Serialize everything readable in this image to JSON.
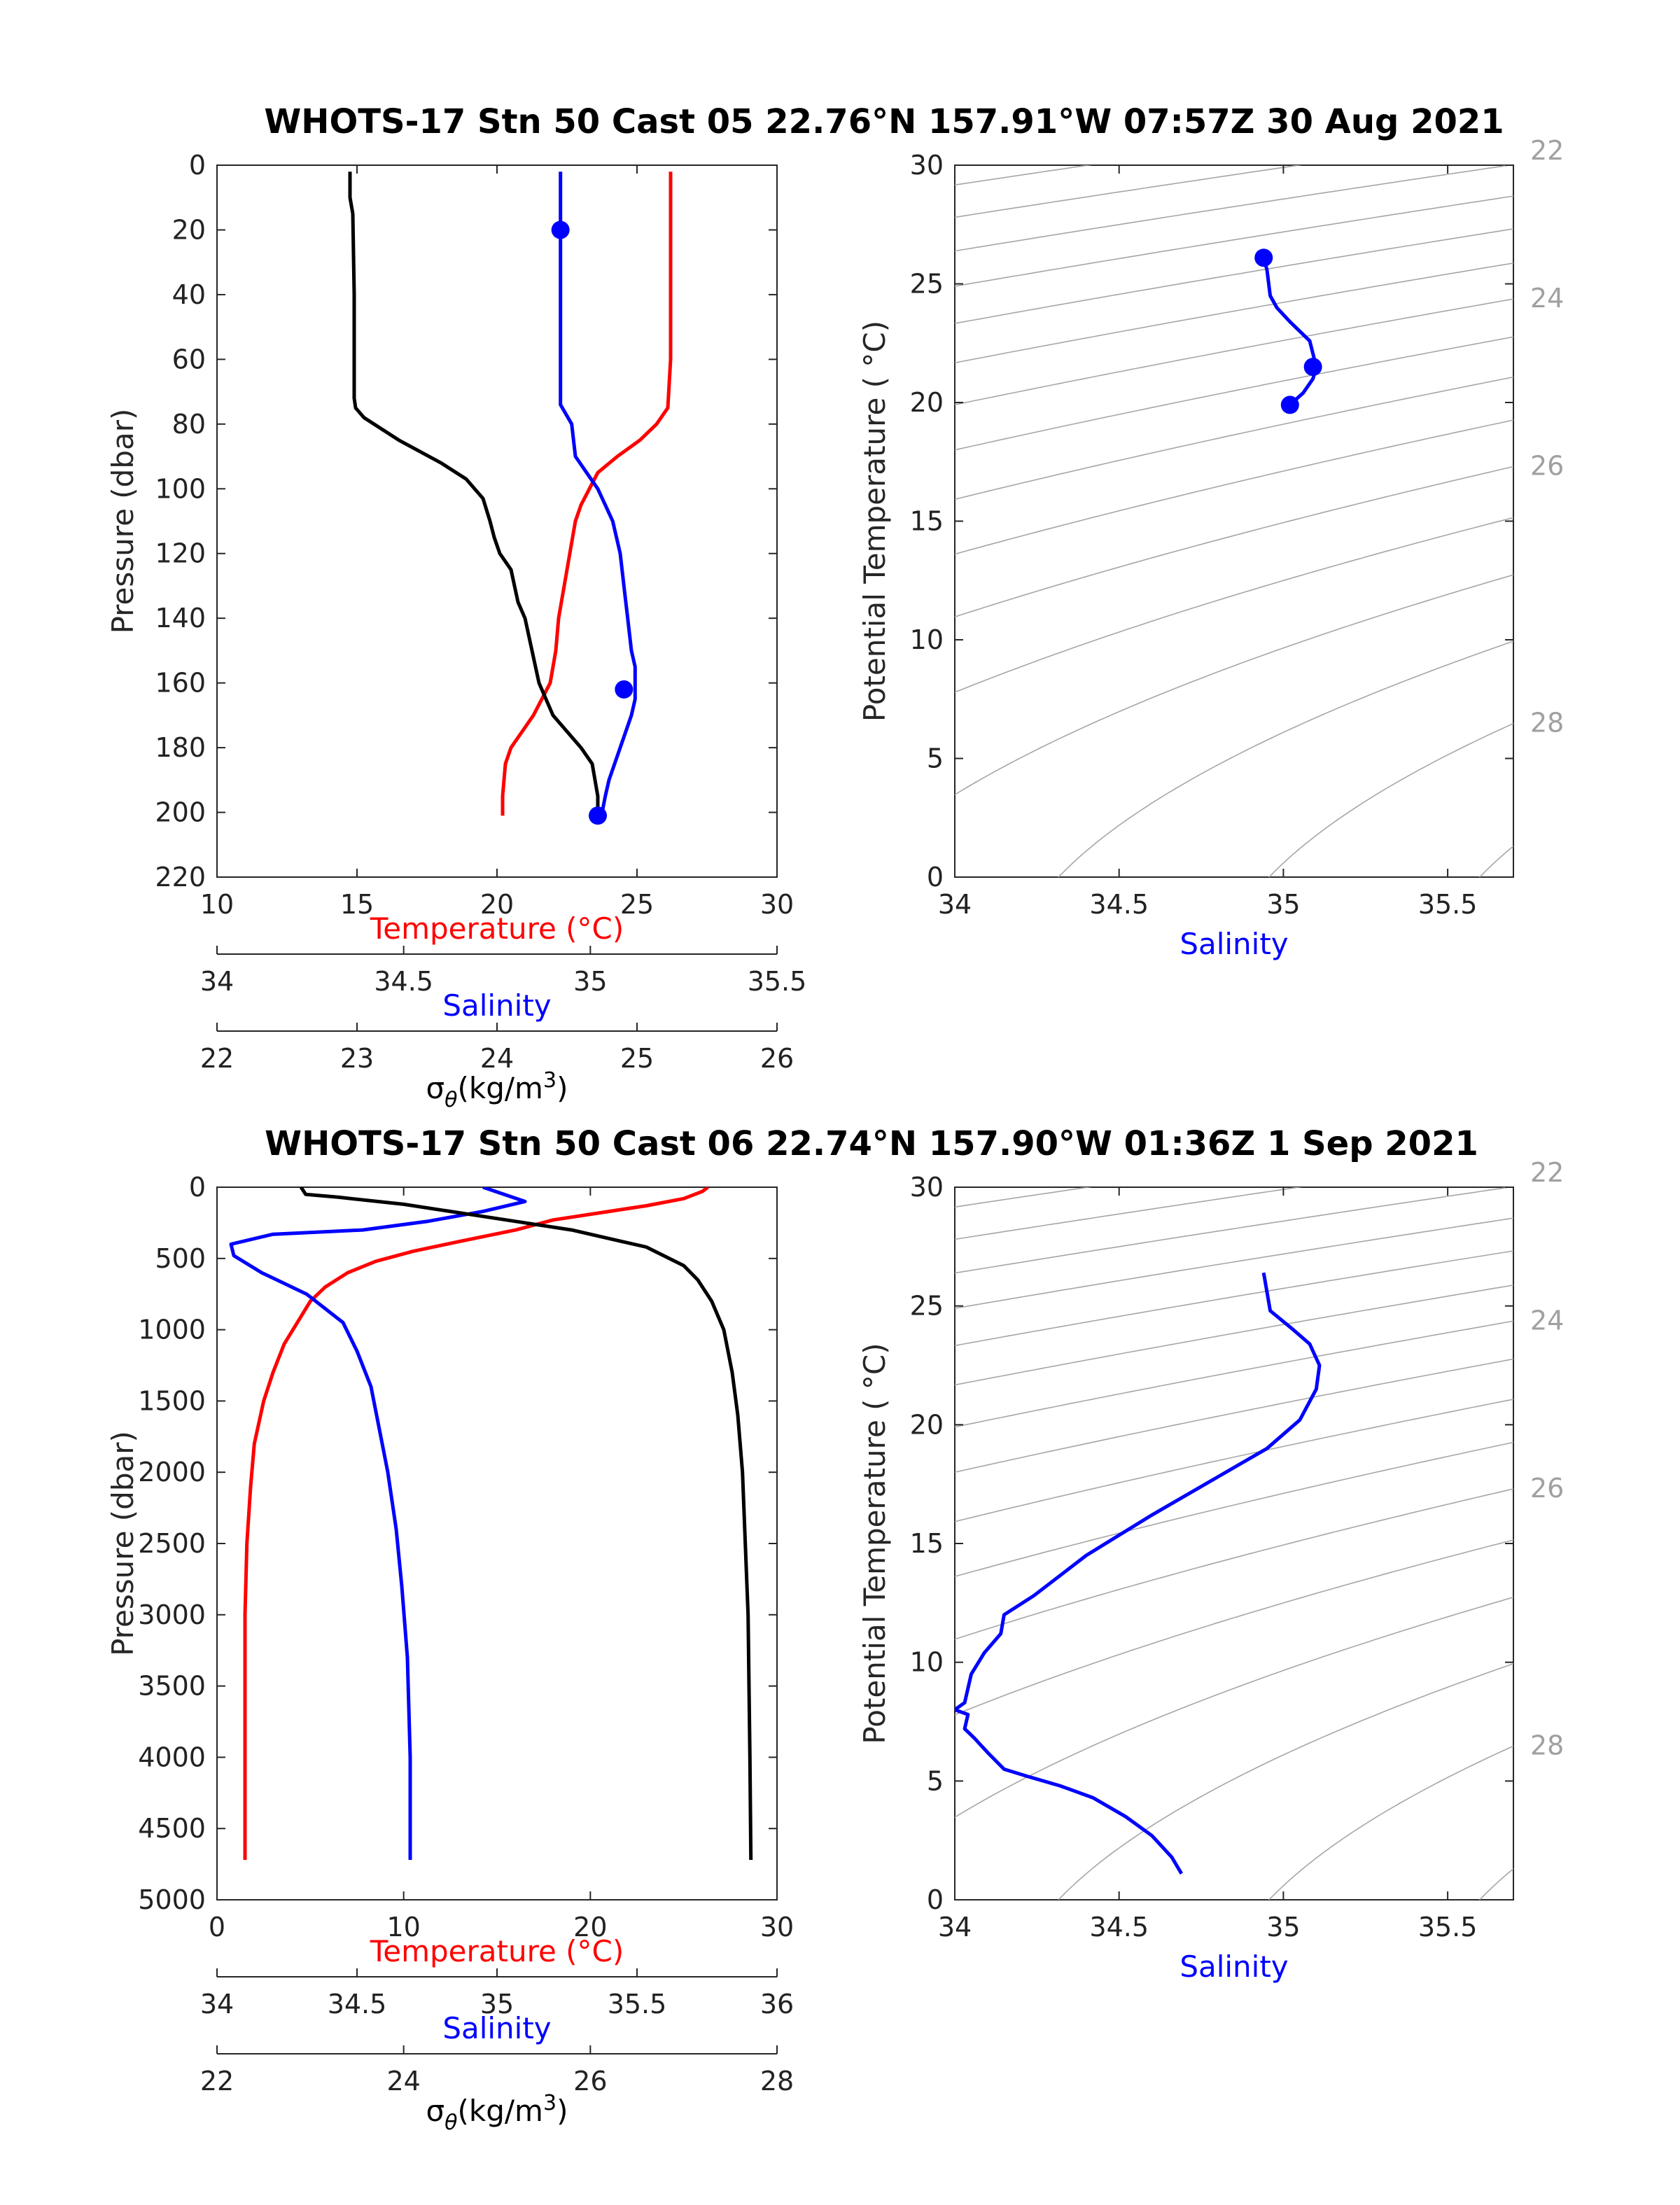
{
  "panels": [
    {
      "title": "WHOTS-17 Stn 50 Cast 05   22.76°N 157.91°W   07:57Z 30 Aug 2021",
      "profile": {
        "type": "line",
        "ylabel": "Pressure (dbar)",
        "ylim": [
          0,
          220
        ],
        "yticks": [
          0,
          20,
          40,
          60,
          80,
          100,
          120,
          140,
          160,
          180,
          200,
          220
        ],
        "axes": [
          {
            "key": "temp",
            "label": "Temperature (°C)",
            "label_color": "#ff0000",
            "range": [
              10,
              30
            ],
            "ticks": [
              10,
              15,
              20,
              25,
              30
            ]
          },
          {
            "key": "sal",
            "label": "Salinity",
            "label_color": "#0000ff",
            "range": [
              34,
              35.5
            ],
            "ticks": [
              34,
              34.5,
              35,
              35.5
            ]
          },
          {
            "key": "sig",
            "label": "σθ(kg/m3)",
            "label_color": "#000000",
            "range": [
              22,
              26
            ],
            "ticks": [
              22,
              23,
              24,
              25,
              26
            ]
          }
        ],
        "series": [
          {
            "key": "temp",
            "color": "#ff0000",
            "x": [
              26.2,
              26.2,
              26.2,
              26.2,
              26.2,
              26.1,
              25.7,
              25.1,
              24.3,
              23.6,
              23.3,
              23.0,
              22.8,
              22.6,
              22.4,
              22.2,
              22.1,
              21.9,
              21.6,
              21.3,
              20.9,
              20.5,
              20.3,
              20.2,
              20.2
            ],
            "y": [
              2,
              10,
              20,
              40,
              60,
              75,
              80,
              85,
              90,
              95,
              100,
              105,
              110,
              120,
              130,
              140,
              150,
              160,
              165,
              170,
              175,
              180,
              185,
              195,
              201
            ]
          },
          {
            "key": "sal",
            "color": "#0000ff",
            "x": [
              34.92,
              34.92,
              34.92,
              34.92,
              34.92,
              34.92,
              34.95,
              34.96,
              34.99,
              35.02,
              35.04,
              35.06,
              35.08,
              35.09,
              35.1,
              35.11,
              35.12,
              35.12,
              35.12,
              35.11,
              35.08,
              35.05,
              35.04,
              35.03
            ],
            "y": [
              2,
              10,
              20,
              40,
              60,
              74,
              80,
              90,
              95,
              100,
              105,
              110,
              120,
              130,
              140,
              150,
              155,
              160,
              165,
              170,
              180,
              190,
              195,
              201
            ]
          },
          {
            "key": "sig",
            "color": "#000000",
            "x": [
              22.95,
              22.95,
              22.97,
              22.98,
              22.98,
              22.98,
              22.99,
              23.05,
              23.3,
              23.6,
              23.78,
              23.9,
              23.95,
              23.98,
              24.02,
              24.1,
              24.15,
              24.2,
              24.25,
              24.3,
              24.4,
              24.5,
              24.6,
              24.68,
              24.72,
              24.72
            ],
            "y": [
              2,
              10,
              15,
              40,
              60,
              72,
              75,
              78,
              85,
              92,
              97,
              103,
              110,
              115,
              120,
              125,
              135,
              140,
              150,
              160,
              170,
              175,
              180,
              185,
              195,
              201
            ]
          }
        ],
        "markers": [
          {
            "key": "sal",
            "x": 34.92,
            "y": 20
          },
          {
            "key": "sal",
            "x": 35.09,
            "y": 162
          },
          {
            "key": "sal",
            "x": 35.02,
            "y": 201
          }
        ]
      },
      "ts": {
        "type": "line",
        "xlabel": "Salinity",
        "ylabel": "Potential Temperature ( °C)",
        "xlim": [
          34,
          35.7
        ],
        "ylim": [
          0,
          30
        ],
        "xticks": [
          34,
          34.5,
          35,
          35.5
        ],
        "yticks": [
          0,
          5,
          10,
          15,
          20,
          25,
          30
        ],
        "density_labels": [
          "22",
          "24",
          "26",
          "28"
        ],
        "line_color": "#0000ff",
        "x": [
          34.94,
          34.95,
          34.96,
          34.98,
          35.02,
          35.05,
          35.08,
          35.1,
          35.09,
          35.06,
          35.02
        ],
        "y": [
          26.1,
          25.6,
          24.5,
          24.0,
          23.4,
          23.0,
          22.6,
          21.5,
          21.0,
          20.4,
          19.9
        ],
        "markers": [
          {
            "x": 34.94,
            "y": 26.1
          },
          {
            "x": 35.09,
            "y": 21.5
          },
          {
            "x": 35.02,
            "y": 19.9
          }
        ]
      }
    },
    {
      "title": "WHOTS-17 Stn 50 Cast 06   22.74°N 157.90°W   01:36Z 1 Sep 2021",
      "profile": {
        "type": "line",
        "ylabel": "Pressure (dbar)",
        "ylim": [
          0,
          5000
        ],
        "yticks": [
          0,
          500,
          1000,
          1500,
          2000,
          2500,
          3000,
          3500,
          4000,
          4500,
          5000
        ],
        "axes": [
          {
            "key": "temp",
            "label": "Temperature (°C)",
            "label_color": "#ff0000",
            "range": [
              0,
              30
            ],
            "ticks": [
              0,
              10,
              20,
              30
            ]
          },
          {
            "key": "sal",
            "label": "Salinity",
            "label_color": "#0000ff",
            "range": [
              34,
              36
            ],
            "ticks": [
              34,
              34.5,
              35,
              35.5,
              36
            ]
          },
          {
            "key": "sig",
            "label": "σθ(kg/m3)",
            "label_color": "#000000",
            "range": [
              22,
              28
            ],
            "ticks": [
              22,
              24,
              26,
              28
            ]
          }
        ],
        "series": [
          {
            "key": "temp",
            "color": "#ff0000",
            "x": [
              26.3,
              26.0,
              25.0,
              23.0,
              21.0,
              18.0,
              16.0,
              13.0,
              10.5,
              8.5,
              7.0,
              5.8,
              5.0,
              4.3,
              3.6,
              3.0,
              2.5,
              2.0,
              1.8,
              1.6,
              1.5,
              1.5,
              1.5
            ],
            "y": [
              0,
              30,
              80,
              130,
              170,
              230,
              300,
              380,
              450,
              520,
              600,
              700,
              800,
              950,
              1100,
              1300,
              1500,
              1800,
              2100,
              2500,
              3000,
              4000,
              4720
            ]
          },
          {
            "key": "sal",
            "color": "#0000ff",
            "x": [
              34.95,
              35.04,
              35.1,
              34.95,
              34.75,
              34.52,
              34.2,
              34.05,
              34.06,
              34.16,
              34.32,
              34.45,
              34.5,
              34.55,
              34.58,
              34.61,
              34.64,
              34.66,
              34.68,
              34.69,
              34.69
            ],
            "y": [
              0,
              60,
              100,
              170,
              240,
              300,
              330,
              400,
              480,
              600,
              750,
              950,
              1150,
              1400,
              1700,
              2000,
              2400,
              2800,
              3300,
              4000,
              4720
            ]
          },
          {
            "key": "sig",
            "color": "#000000",
            "x": [
              22.9,
              22.95,
              23.3,
              24.0,
              24.8,
              25.8,
              26.6,
              27.0,
              27.15,
              27.3,
              27.43,
              27.52,
              27.58,
              27.63,
              27.66,
              27.69,
              27.7,
              27.71,
              27.72
            ],
            "y": [
              0,
              50,
              70,
              120,
              200,
              300,
              420,
              550,
              650,
              800,
              1000,
              1300,
              1600,
              2000,
              2500,
              3000,
              3500,
              4000,
              4720
            ]
          }
        ],
        "markers": []
      },
      "ts": {
        "type": "line",
        "xlabel": "Salinity",
        "ylabel": "Potential Temperature ( °C)",
        "xlim": [
          34,
          35.7
        ],
        "ylim": [
          0,
          30
        ],
        "xticks": [
          34,
          34.5,
          35,
          35.5
        ],
        "yticks": [
          0,
          5,
          10,
          15,
          20,
          25,
          30
        ],
        "density_labels": [
          "22",
          "24",
          "26",
          "28"
        ],
        "line_color": "#0000ff",
        "x": [
          34.94,
          34.95,
          34.96,
          35.03,
          35.08,
          35.11,
          35.1,
          35.05,
          34.95,
          34.8,
          34.6,
          34.4,
          34.24,
          34.15,
          34.14,
          34.09,
          34.05,
          34.03,
          34.0,
          34.04,
          34.03,
          34.06,
          34.1,
          34.15,
          34.22,
          34.32,
          34.42,
          34.52,
          34.6,
          34.66,
          34.69
        ],
        "y": [
          26.4,
          25.6,
          24.8,
          24.0,
          23.4,
          22.5,
          21.5,
          20.2,
          19.0,
          17.8,
          16.2,
          14.5,
          12.8,
          12.0,
          11.2,
          10.4,
          9.5,
          8.3,
          8.0,
          7.8,
          7.2,
          6.8,
          6.2,
          5.5,
          5.2,
          4.8,
          4.3,
          3.5,
          2.7,
          1.8,
          1.1
        ]
      }
    }
  ]
}
